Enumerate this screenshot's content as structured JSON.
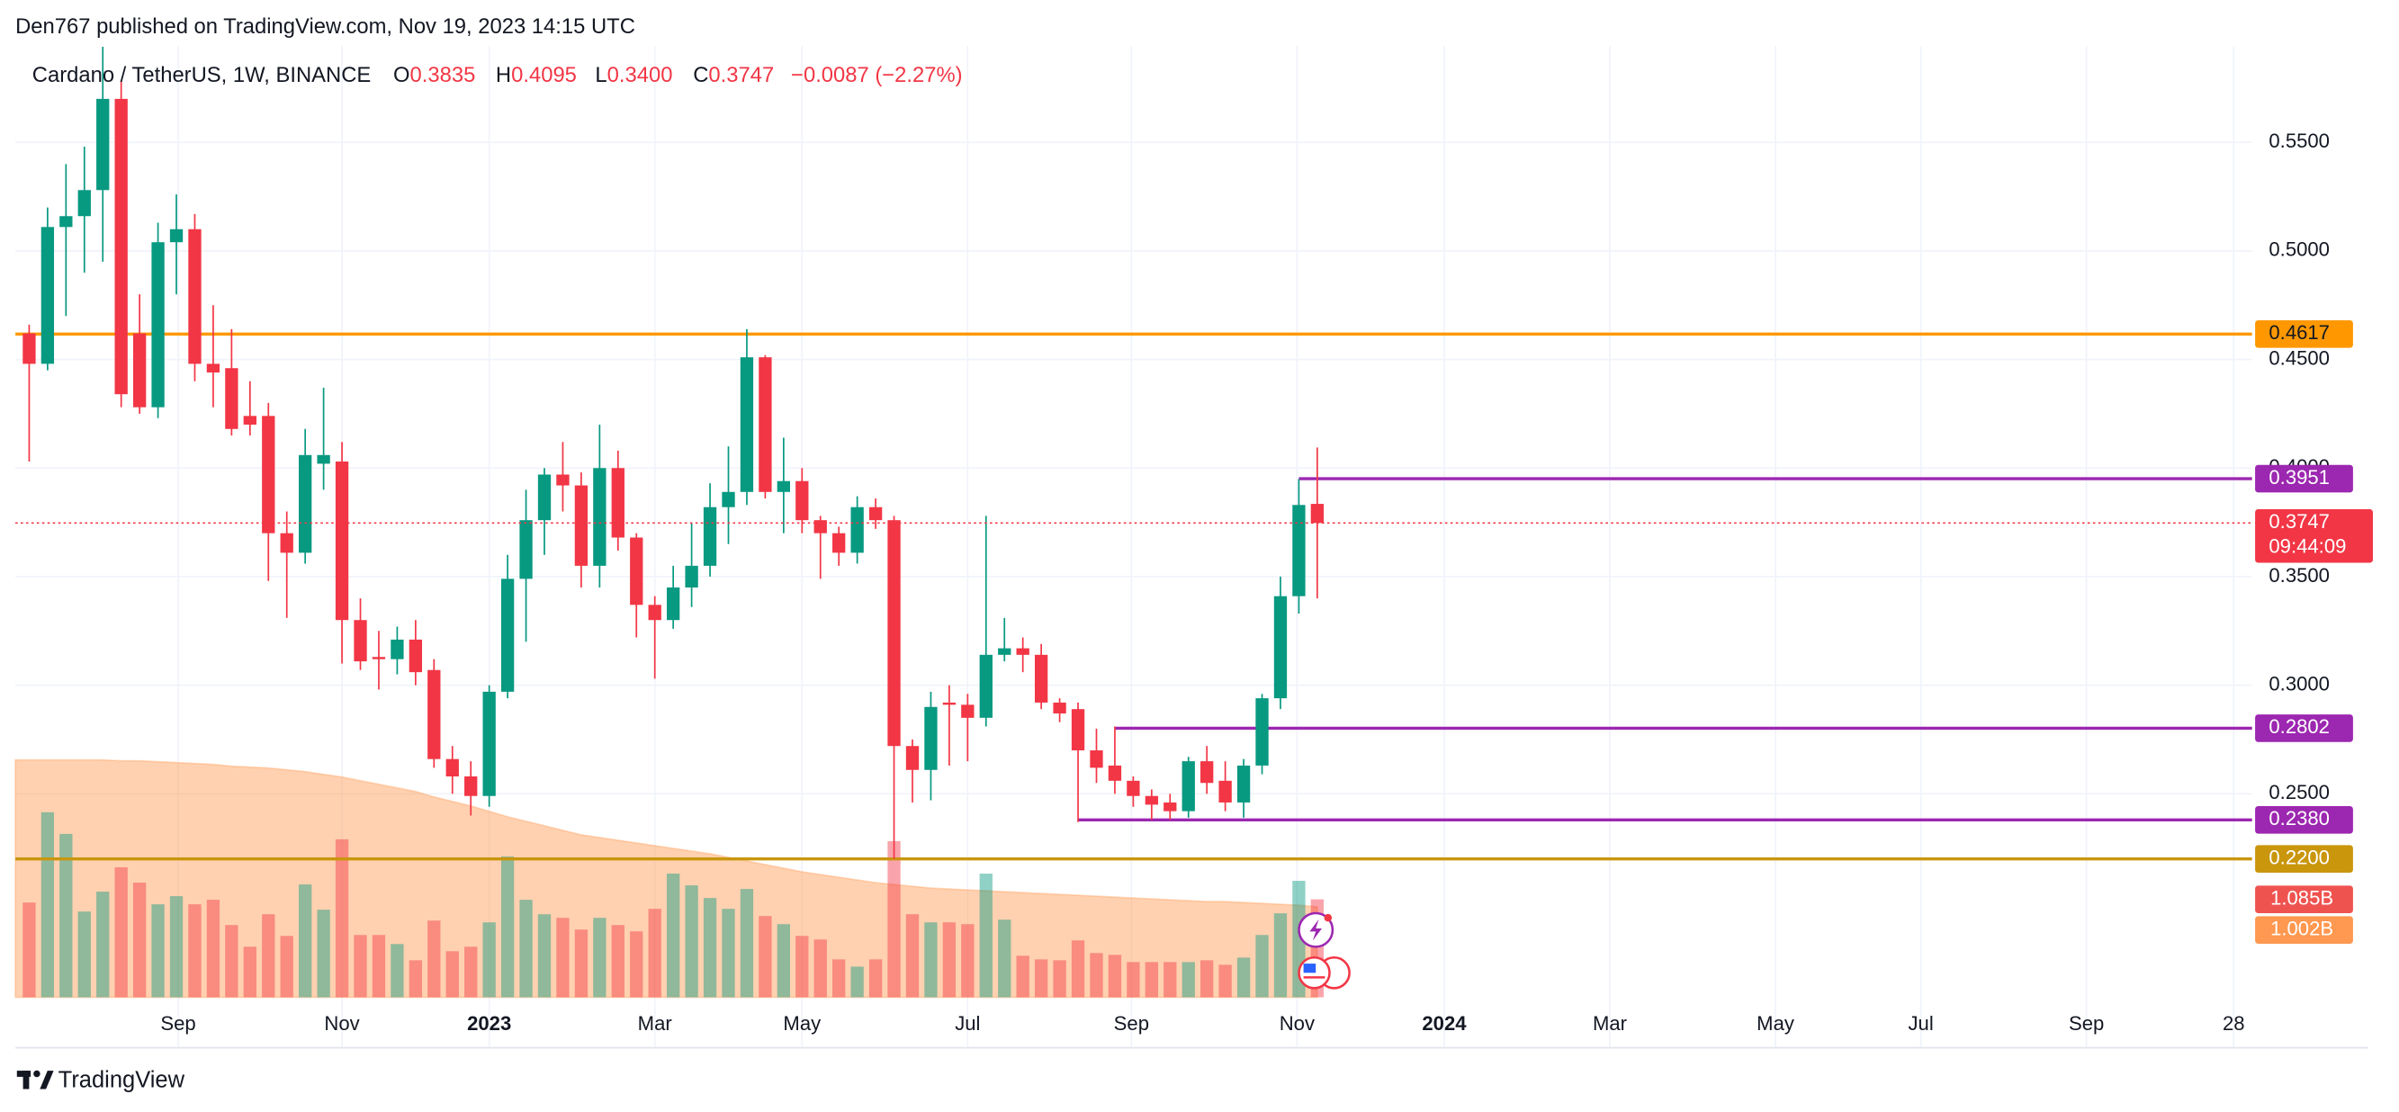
{
  "chart_data": {
    "type": "candlestick",
    "header": "Den767 published on TradingView.com, Nov 19, 2023 14:15 UTC",
    "title": "Cardano / TetherUS, 1W, BINANCE",
    "legend": {
      "open_key": "O",
      "high_key": "H",
      "low_key": "L",
      "low_label": "0.3400",
      "close_key": "C",
      "change": "−0.0087 (−2.27%)"
    },
    "footer": "TradingView",
    "countdown": "09:44:09",
    "up_color": "#089981",
    "down_color": "#f23645",
    "series": {
      "open": [
        0.462,
        0.448,
        0.511,
        0.516,
        0.528,
        0.57,
        0.462,
        0.428,
        0.504,
        0.51,
        0.448,
        0.446,
        0.424,
        0.424,
        0.37,
        0.361,
        0.402,
        0.403,
        0.33,
        0.313,
        0.312,
        0.321,
        0.307,
        0.266,
        0.258,
        0.249,
        0.297,
        0.349,
        0.376,
        0.397,
        0.392,
        0.355,
        0.4,
        0.368,
        0.337,
        0.33,
        0.345,
        0.355,
        0.382,
        0.389,
        0.451,
        0.389,
        0.394,
        0.376,
        0.37,
        0.361,
        0.382,
        0.376,
        0.272,
        0.261,
        0.292,
        0.291,
        0.285,
        0.314,
        0.317,
        0.314,
        0.292,
        0.289,
        0.27,
        0.263,
        0.256,
        0.249,
        0.246,
        0.242,
        0.265,
        0.256,
        0.246,
        0.263,
        0.294,
        0.341,
        0.3835
      ],
      "high": [
        0.466,
        0.52,
        0.54,
        0.548,
        0.594,
        0.578,
        0.48,
        0.513,
        0.526,
        0.517,
        0.475,
        0.464,
        0.44,
        0.43,
        0.38,
        0.418,
        0.437,
        0.412,
        0.34,
        0.325,
        0.327,
        0.33,
        0.312,
        0.272,
        0.265,
        0.3,
        0.36,
        0.39,
        0.4,
        0.412,
        0.398,
        0.42,
        0.408,
        0.37,
        0.341,
        0.355,
        0.375,
        0.393,
        0.41,
        0.464,
        0.452,
        0.414,
        0.4,
        0.378,
        0.373,
        0.387,
        0.386,
        0.378,
        0.275,
        0.297,
        0.3,
        0.296,
        0.378,
        0.331,
        0.322,
        0.319,
        0.294,
        0.292,
        0.28,
        0.281,
        0.258,
        0.252,
        0.25,
        0.267,
        0.272,
        0.265,
        0.266,
        0.296,
        0.35,
        0.395,
        0.4095
      ],
      "low": [
        0.403,
        0.445,
        0.47,
        0.49,
        0.495,
        0.428,
        0.425,
        0.423,
        0.48,
        0.44,
        0.428,
        0.415,
        0.415,
        0.348,
        0.331,
        0.356,
        0.39,
        0.31,
        0.307,
        0.298,
        0.305,
        0.3,
        0.262,
        0.25,
        0.24,
        0.244,
        0.294,
        0.32,
        0.36,
        0.38,
        0.345,
        0.345,
        0.362,
        0.322,
        0.303,
        0.326,
        0.336,
        0.35,
        0.365,
        0.383,
        0.386,
        0.37,
        0.37,
        0.349,
        0.355,
        0.356,
        0.372,
        0.22,
        0.246,
        0.247,
        0.263,
        0.265,
        0.281,
        0.311,
        0.306,
        0.289,
        0.283,
        0.237,
        0.255,
        0.25,
        0.244,
        0.238,
        0.238,
        0.239,
        0.25,
        0.242,
        0.239,
        0.259,
        0.289,
        0.333,
        0.34
      ],
      "close": [
        0.448,
        0.511,
        0.516,
        0.528,
        0.57,
        0.434,
        0.428,
        0.504,
        0.51,
        0.448,
        0.444,
        0.418,
        0.42,
        0.37,
        0.361,
        0.406,
        0.406,
        0.33,
        0.311,
        0.312,
        0.321,
        0.306,
        0.266,
        0.258,
        0.249,
        0.297,
        0.349,
        0.376,
        0.397,
        0.392,
        0.355,
        0.4,
        0.368,
        0.337,
        0.33,
        0.345,
        0.355,
        0.382,
        0.389,
        0.451,
        0.389,
        0.394,
        0.376,
        0.37,
        0.361,
        0.382,
        0.376,
        0.272,
        0.261,
        0.29,
        0.291,
        0.285,
        0.314,
        0.317,
        0.314,
        0.292,
        0.287,
        0.27,
        0.262,
        0.256,
        0.249,
        0.245,
        0.242,
        0.265,
        0.255,
        0.246,
        0.263,
        0.294,
        0.341,
        0.383,
        0.3747
      ]
    },
    "volume": {
      "values": [
        1.05,
        2.05,
        1.81,
        0.95,
        1.17,
        1.44,
        1.27,
        1.03,
        1.12,
        1.03,
        1.08,
        0.8,
        0.56,
        0.92,
        0.68,
        1.25,
        0.97,
        1.75,
        0.69,
        0.69,
        0.59,
        0.41,
        0.85,
        0.51,
        0.56,
        0.83,
        1.56,
        1.08,
        0.92,
        0.88,
        0.75,
        0.88,
        0.8,
        0.73,
        0.98,
        1.37,
        1.24,
        1.1,
        0.98,
        1.2,
        0.9,
        0.81,
        0.68,
        0.64,
        0.42,
        0.34,
        0.42,
        1.73,
        0.92,
        0.83,
        0.83,
        0.81,
        1.37,
        0.86,
        0.46,
        0.42,
        0.41,
        0.63,
        0.49,
        0.47,
        0.39,
        0.39,
        0.39,
        0.39,
        0.41,
        0.36,
        0.44,
        0.69,
        0.93,
        1.29,
        1.085
      ],
      "last_label": "1.085B",
      "label_color": "#ef5350"
    },
    "volume_ma": {
      "values": [
        2.63,
        2.63,
        2.63,
        2.63,
        2.63,
        2.62,
        2.62,
        2.61,
        2.6,
        2.59,
        2.58,
        2.56,
        2.55,
        2.54,
        2.52,
        2.5,
        2.47,
        2.44,
        2.4,
        2.36,
        2.32,
        2.28,
        2.22,
        2.17,
        2.12,
        2.06,
        2.0,
        1.95,
        1.9,
        1.85,
        1.8,
        1.77,
        1.74,
        1.71,
        1.68,
        1.65,
        1.62,
        1.59,
        1.55,
        1.51,
        1.47,
        1.43,
        1.39,
        1.36,
        1.33,
        1.3,
        1.27,
        1.25,
        1.23,
        1.21,
        1.2,
        1.19,
        1.18,
        1.17,
        1.16,
        1.15,
        1.14,
        1.13,
        1.12,
        1.11,
        1.1,
        1.09,
        1.08,
        1.07,
        1.06,
        1.06,
        1.05,
        1.04,
        1.03,
        1.02,
        1.002
      ],
      "last_label": "1.002B",
      "color": "#ff9850"
    },
    "vlim": [
      0,
      10.54
    ],
    "levels": [
      {
        "value": 0.4617,
        "color": "#ff9800",
        "text_color": "#131722"
      },
      {
        "value": 0.3951,
        "color": "#9c27b0",
        "text_color": "#ffffff",
        "from": 69
      },
      {
        "value": 0.2802,
        "color": "#9c27b0",
        "text_color": "#ffffff",
        "from": 59
      },
      {
        "value": 0.238,
        "label": "0.2380",
        "color": "#9c27b0",
        "text_color": "#ffffff",
        "from": 57
      },
      {
        "value": 0.22,
        "label": "0.2200",
        "color": "#c9960c",
        "text_color": "#ffffff"
      }
    ],
    "ylim": [
      0.1563,
      0.5944
    ],
    "yticks": [
      {
        "value": 0.25,
        "label": "0.2500"
      },
      {
        "value": 0.3,
        "label": "0.3000"
      },
      {
        "value": 0.35,
        "label": "0.3500"
      },
      {
        "value": 0.4,
        "label": "0.4000"
      },
      {
        "value": 0.45,
        "label": "0.4500"
      },
      {
        "value": 0.5,
        "label": "0.5000"
      },
      {
        "value": 0.55,
        "label": "0.5500"
      }
    ],
    "xlim": [
      -0.75,
      120.8
    ],
    "xticks": [
      {
        "value": 8.1,
        "label": "Sep"
      },
      {
        "value": 17.0,
        "label": "Nov"
      },
      {
        "value": 25.0,
        "label": "2023"
      },
      {
        "value": 34.0,
        "label": "Mar"
      },
      {
        "value": 42.0,
        "label": "May"
      },
      {
        "value": 51.0,
        "label": "Jul"
      },
      {
        "value": 59.9,
        "label": "Sep"
      },
      {
        "value": 68.9,
        "label": "Nov"
      },
      {
        "value": 76.9,
        "label": "2024"
      },
      {
        "value": 85.9,
        "label": "Mar"
      },
      {
        "value": 94.9,
        "label": "May"
      },
      {
        "value": 102.8,
        "label": "Jul"
      },
      {
        "value": 111.8,
        "label": "Sep"
      },
      {
        "value": 119.8,
        "label": "28"
      }
    ],
    "grid": true
  }
}
